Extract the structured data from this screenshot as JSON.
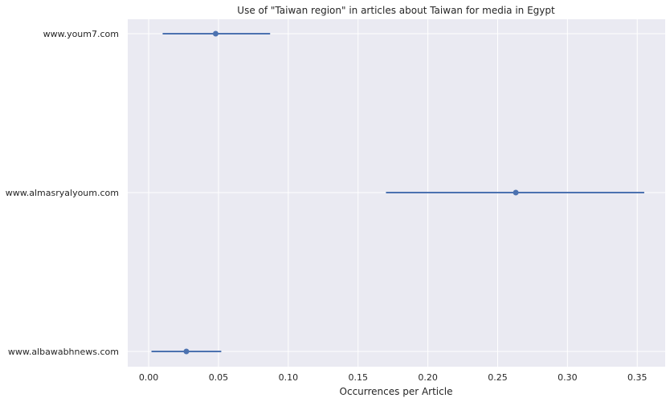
{
  "chart_data": {
    "type": "pointplot-errorbar",
    "title": "Use of \"Taiwan region\" in articles about Taiwan for media in Egypt",
    "xlabel": "Occurrences per Article",
    "ylabel": "",
    "xlim": [
      -0.015,
      0.37
    ],
    "x_ticks": [
      0.0,
      0.05,
      0.1,
      0.15,
      0.2,
      0.25,
      0.3,
      0.35
    ],
    "x_tick_labels": [
      "0.00",
      "0.05",
      "0.10",
      "0.15",
      "0.20",
      "0.25",
      "0.30",
      "0.35"
    ],
    "grid": true,
    "series_color": "#4c72b0",
    "background_color": "#eaeaf2",
    "categories": [
      "www.youm7.com",
      "www.almasryalyoum.com",
      "www.albawabhnews.com"
    ],
    "points": [
      {
        "category": "www.youm7.com",
        "value": 0.048,
        "ci_low": 0.01,
        "ci_high": 0.087
      },
      {
        "category": "www.almasryalyoum.com",
        "value": 0.263,
        "ci_low": 0.17,
        "ci_high": 0.355
      },
      {
        "category": "www.albawabhnews.com",
        "value": 0.027,
        "ci_low": 0.002,
        "ci_high": 0.052
      }
    ]
  }
}
